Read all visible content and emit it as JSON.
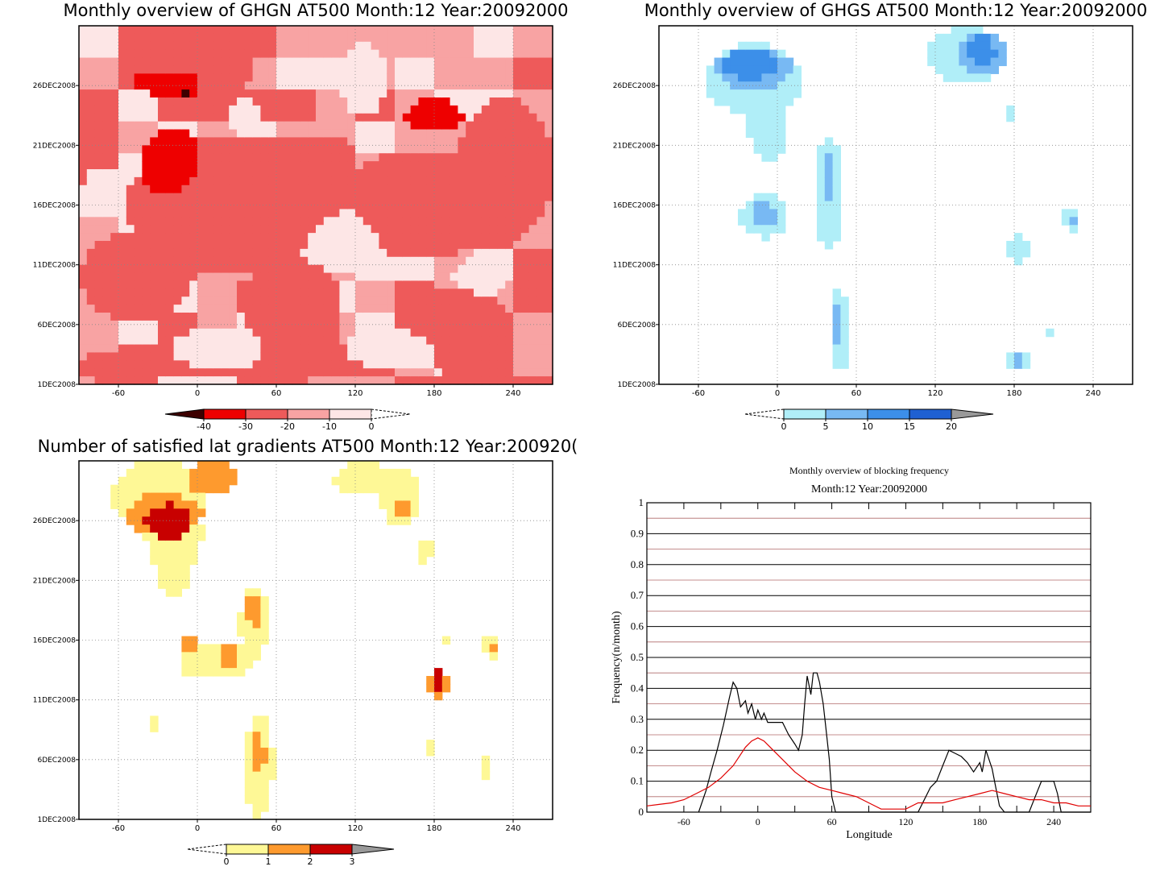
{
  "chart_data": [
    {
      "type": "heatmap",
      "title": "Monthly overview of GHGN AT500 Month:12 Year:20092000",
      "x_ticks": [
        "-60",
        "0",
        "60",
        "120",
        "180",
        "240"
      ],
      "y_ticks": [
        "1DEC2008",
        "6DEC2008",
        "11DEC2008",
        "16DEC2008",
        "21DEC2008",
        "26DEC2008"
      ],
      "colorbar": {
        "labels": [
          "-40",
          "-30",
          "-20",
          "-10",
          "0"
        ],
        "colors": [
          "#3d0000",
          "#ee0000",
          "#ee5a5a",
          "#f8a3a3",
          "#fde6e6",
          "#ffffff"
        ]
      }
    },
    {
      "type": "heatmap",
      "title": "Monthly overview of GHGS AT500 Month:12 Year:20092000",
      "x_ticks": [
        "-60",
        "0",
        "60",
        "120",
        "180",
        "240"
      ],
      "y_ticks": [
        "1DEC2008",
        "6DEC2008",
        "11DEC2008",
        "16DEC2008",
        "21DEC2008",
        "26DEC2008"
      ],
      "colorbar": {
        "labels": [
          "0",
          "5",
          "10",
          "15",
          "20"
        ],
        "colors": [
          "#ffffff",
          "#b0eef8",
          "#78b9f3",
          "#3c8fe9",
          "#1f60d2",
          "#999999"
        ]
      }
    },
    {
      "type": "heatmap",
      "title": "Number of satisfied lat gradients AT500 Month:12 Year:200920(",
      "x_ticks": [
        "-60",
        "0",
        "60",
        "120",
        "180",
        "240"
      ],
      "y_ticks": [
        "1DEC2008",
        "6DEC2008",
        "11DEC2008",
        "16DEC2008",
        "21DEC2008",
        "26DEC2008"
      ],
      "colorbar": {
        "labels": [
          "0",
          "1",
          "2",
          "3"
        ],
        "colors": [
          "#ffffff",
          "#fef896",
          "#fe9a2e",
          "#c80000",
          "#999999"
        ]
      }
    },
    {
      "type": "line",
      "title": "Monthly overview of blocking frequency",
      "subtitle": "Month:12 Year:20092000",
      "xlabel": "Longitude",
      "ylabel": "Frequency(n/month)",
      "xlim": [
        -90,
        270
      ],
      "ylim": [
        0,
        1
      ],
      "x_ticks": [
        "-60",
        "0",
        "60",
        "120",
        "180",
        "240"
      ],
      "y_ticks": [
        "0",
        "0.1",
        "0.2",
        "0.3",
        "0.4",
        "0.5",
        "0.6",
        "0.7",
        "0.8",
        "0.9",
        "1"
      ],
      "series": [
        {
          "color": "#000000",
          "x": [
            -48,
            -42,
            -38,
            -33,
            -28,
            -23,
            -20,
            -17,
            -14,
            -10,
            -8,
            -5,
            -2,
            0,
            3,
            5,
            8,
            10,
            15,
            20,
            25,
            30,
            33,
            36,
            38,
            40,
            43,
            45,
            48,
            50,
            53,
            55,
            58,
            60,
            63,
            66,
            70,
            75,
            80,
            100,
            130,
            140,
            145,
            150,
            155,
            160,
            165,
            170,
            175,
            180,
            182,
            185,
            190,
            193,
            196,
            200,
            205,
            210,
            215,
            220,
            225,
            230,
            235,
            240,
            243,
            246,
            250,
            260,
            270
          ],
          "y": [
            0,
            0.07,
            0.13,
            0.2,
            0.28,
            0.37,
            0.42,
            0.4,
            0.34,
            0.36,
            0.32,
            0.35,
            0.3,
            0.33,
            0.3,
            0.32,
            0.29,
            0.29,
            0.29,
            0.29,
            0.25,
            0.22,
            0.2,
            0.25,
            0.35,
            0.44,
            0.38,
            0.45,
            0.45,
            0.42,
            0.35,
            0.28,
            0.17,
            0.05,
            0,
            0,
            0,
            0,
            0,
            0,
            0,
            0.08,
            0.1,
            0.15,
            0.2,
            0.19,
            0.18,
            0.16,
            0.13,
            0.16,
            0.13,
            0.2,
            0.14,
            0.08,
            0.02,
            0,
            0,
            0,
            0,
            0,
            0.05,
            0.1,
            0.1,
            0.1,
            0.06,
            0,
            0,
            0,
            0
          ]
        },
        {
          "color": "#e00000",
          "x": [
            -90,
            -80,
            -70,
            -60,
            -50,
            -40,
            -30,
            -20,
            -10,
            -5,
            0,
            5,
            10,
            20,
            30,
            40,
            50,
            60,
            70,
            80,
            90,
            100,
            110,
            120,
            130,
            140,
            150,
            160,
            170,
            180,
            190,
            200,
            210,
            220,
            230,
            240,
            250,
            260,
            270
          ],
          "y": [
            0.02,
            0.025,
            0.03,
            0.04,
            0.06,
            0.08,
            0.11,
            0.15,
            0.21,
            0.23,
            0.24,
            0.23,
            0.21,
            0.17,
            0.13,
            0.1,
            0.08,
            0.07,
            0.06,
            0.05,
            0.03,
            0.01,
            0.01,
            0.01,
            0.03,
            0.03,
            0.03,
            0.04,
            0.05,
            0.06,
            0.07,
            0.06,
            0.05,
            0.04,
            0.04,
            0.03,
            0.03,
            0.02,
            0.02
          ]
        }
      ]
    }
  ]
}
